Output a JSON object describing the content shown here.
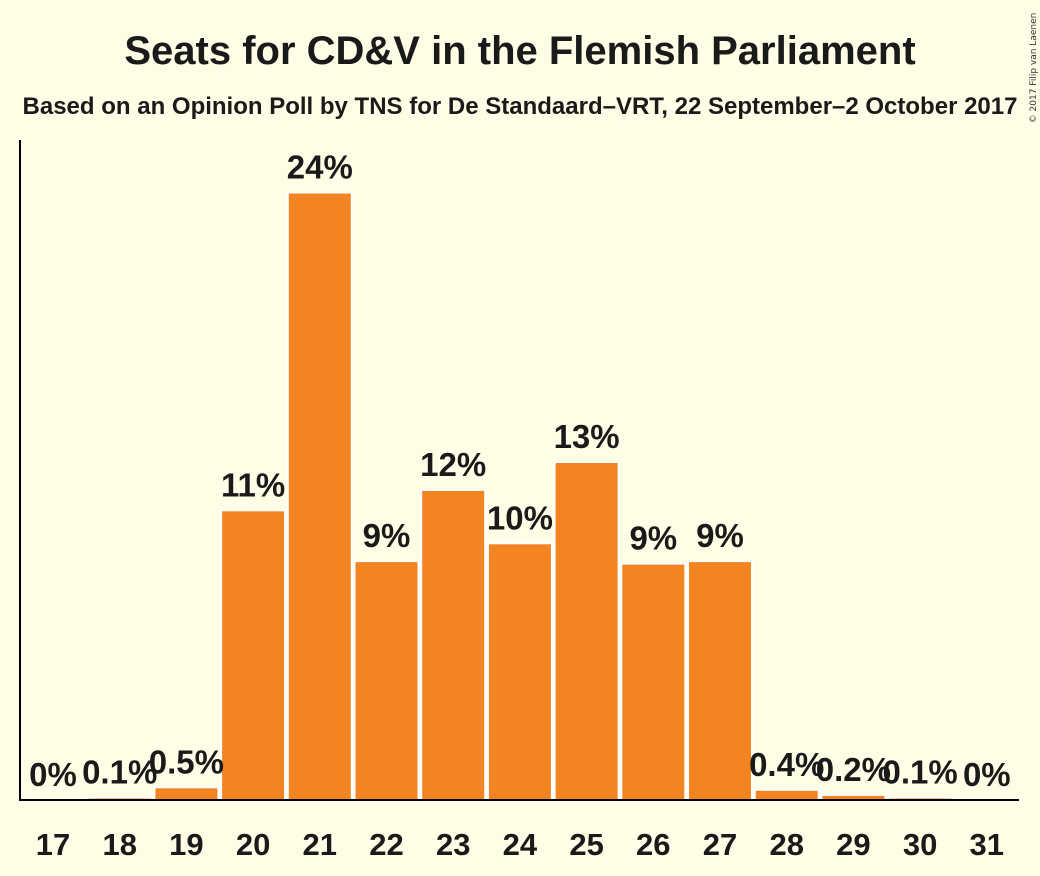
{
  "chart_data": {
    "type": "bar",
    "title": "Seats for CD&V in the Flemish Parliament",
    "subtitle": "Based on an Opinion Poll by TNS for De Standaard–VRT, 22 September–2 October 2017",
    "copyright": "© 2017 Filip van Laenen",
    "categories": [
      "17",
      "18",
      "19",
      "20",
      "21",
      "22",
      "23",
      "24",
      "25",
      "26",
      "27",
      "28",
      "29",
      "30",
      "31"
    ],
    "values": [
      0,
      0.1,
      0.5,
      11.4,
      23.9,
      9.4,
      12.2,
      10.1,
      13.3,
      9.3,
      9.4,
      0.4,
      0.2,
      0.1,
      0
    ],
    "value_labels": [
      "0%",
      "0.1%",
      "0.5%",
      "11%",
      "24%",
      "9%",
      "12%",
      "10%",
      "13%",
      "9%",
      "9%",
      "0.4%",
      "0.2%",
      "0.1%",
      "0%"
    ],
    "ylim": [
      0,
      24
    ],
    "grid": false,
    "colors": {
      "background": "#fffde5",
      "bar": "#f28422",
      "bar_edge": "#ffffff",
      "text": "#1a1a1a",
      "axis": "#000000"
    }
  }
}
